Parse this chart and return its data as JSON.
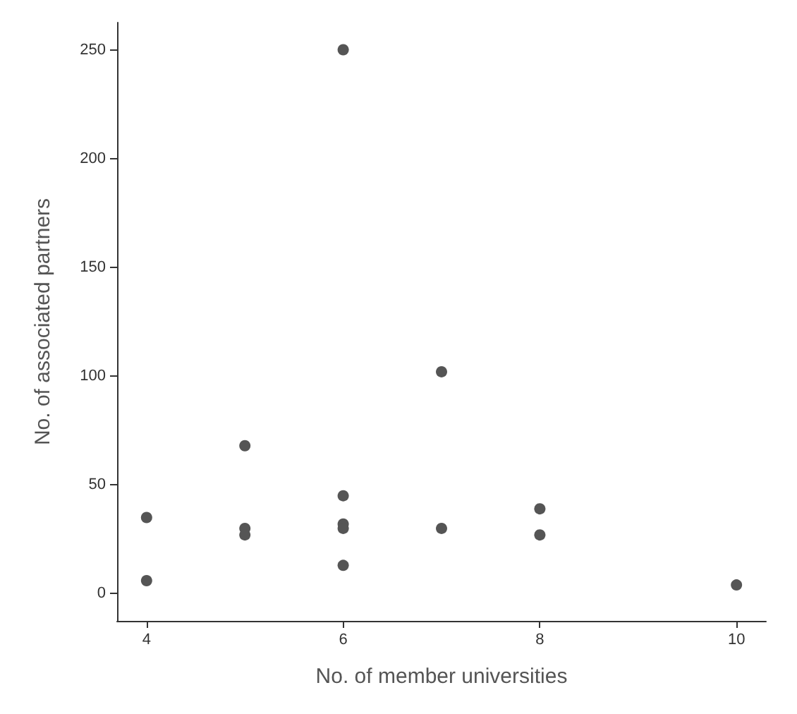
{
  "chart_data": {
    "type": "scatter",
    "xlabel": "No. of member universities",
    "ylabel": "No. of associated partners",
    "x": [
      4,
      4,
      5,
      5,
      5,
      6,
      6,
      6,
      6,
      6,
      7,
      7,
      8,
      8,
      10
    ],
    "series": [
      {
        "color": "#555555",
        "values": [
          35,
          6,
          68,
          30,
          27,
          250,
          45,
          32,
          30,
          13,
          102,
          30,
          39,
          27,
          4
        ]
      }
    ],
    "xlim": [
      3.7,
      10.3
    ],
    "xticks": [
      4,
      6,
      8,
      10
    ],
    "ylim": [
      -12.5,
      262.5
    ],
    "yticks": [
      0,
      50,
      100,
      150,
      200,
      250
    ],
    "grid": false,
    "marker": "circle"
  }
}
